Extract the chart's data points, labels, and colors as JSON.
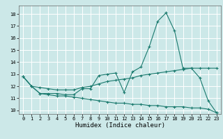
{
  "title": "",
  "xlabel": "Humidex (Indice chaleur)",
  "ylabel": "",
  "xlim": [
    -0.5,
    23.5
  ],
  "ylim": [
    9.7,
    18.7
  ],
  "yticks": [
    10,
    11,
    12,
    13,
    14,
    15,
    16,
    17,
    18
  ],
  "xticks": [
    0,
    1,
    2,
    3,
    4,
    5,
    6,
    7,
    8,
    9,
    10,
    11,
    12,
    13,
    14,
    15,
    16,
    17,
    18,
    19,
    20,
    21,
    22,
    23
  ],
  "bg_color": "#cce8e8",
  "grid_color": "#ffffff",
  "line_color": "#1a7a6e",
  "line1_y": [
    12.8,
    12.0,
    11.4,
    11.4,
    11.4,
    11.3,
    11.3,
    11.8,
    11.8,
    12.9,
    13.0,
    13.1,
    11.5,
    13.2,
    13.6,
    15.3,
    17.4,
    18.1,
    16.6,
    13.5,
    13.5,
    12.7,
    10.8,
    9.8
  ],
  "line2_y": [
    12.8,
    12.0,
    11.9,
    11.8,
    11.7,
    11.7,
    11.7,
    11.9,
    12.0,
    12.2,
    12.4,
    12.5,
    12.6,
    12.7,
    12.9,
    13.0,
    13.1,
    13.2,
    13.3,
    13.4,
    13.5,
    13.5,
    13.5,
    13.5
  ],
  "line3_y": [
    12.8,
    12.0,
    11.4,
    11.3,
    11.2,
    11.2,
    11.1,
    11.0,
    10.9,
    10.8,
    10.7,
    10.6,
    10.6,
    10.5,
    10.5,
    10.4,
    10.4,
    10.3,
    10.3,
    10.3,
    10.2,
    10.2,
    10.1,
    9.8
  ],
  "tick_fontsize": 5.0,
  "xlabel_fontsize": 6.5,
  "lw": 0.8,
  "marker_size": 3.0
}
